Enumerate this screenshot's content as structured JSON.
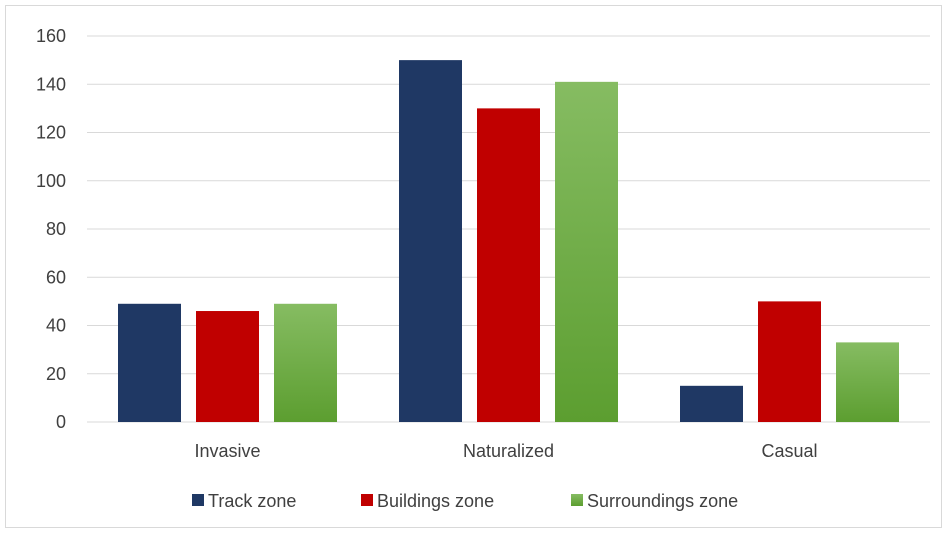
{
  "chart_data": {
    "type": "bar",
    "categories": [
      "Invasive",
      "Naturalized",
      "Casual"
    ],
    "series": [
      {
        "name": "Track zone",
        "values": [
          49,
          150,
          15
        ],
        "color": "#1f3864"
      },
      {
        "name": "Buildings zone",
        "values": [
          46,
          130,
          50
        ],
        "color": "#c00000"
      },
      {
        "name": "Surroundings zone",
        "values": [
          49,
          141,
          33
        ],
        "color": "#70ad47",
        "gradient": [
          "#86bc62",
          "#5c9e30"
        ]
      }
    ],
    "title": "",
    "xlabel": "",
    "ylabel": "",
    "ylim": [
      0,
      160
    ],
    "yticks": [
      "0",
      "20",
      "40",
      "60",
      "80",
      "100",
      "120",
      "140",
      "160"
    ],
    "grid": true,
    "legend": "bottom",
    "gridColor": "#d9d9d9"
  }
}
